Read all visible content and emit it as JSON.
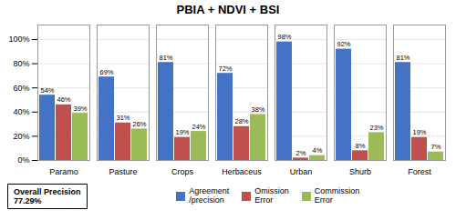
{
  "chart_data": {
    "type": "bar",
    "title": "PBIA + NDVI + BSI",
    "categories": [
      "Paramo",
      "Pasture",
      "Crops",
      "Herbaceus",
      "Urban",
      "Shurb",
      "Forest"
    ],
    "series": [
      {
        "name": "Agreement\n/precision",
        "color": "#4472C4",
        "values": [
          54,
          69,
          81,
          72,
          98,
          92,
          81
        ],
        "value_labels": [
          "54%",
          "69%",
          "81%",
          "72%",
          "98%",
          "92%",
          "81%"
        ]
      },
      {
        "name": "Omission\nError",
        "color": "#C0504D",
        "values": [
          46,
          31,
          19,
          28,
          2,
          8,
          19
        ],
        "value_labels": [
          "46%",
          "31%",
          "19%",
          "28%",
          "2%",
          "8%",
          "19%"
        ]
      },
      {
        "name": "Commission\nError",
        "color": "#9BBB59",
        "values": [
          39,
          26,
          24,
          38,
          4,
          23,
          7
        ],
        "value_labels": [
          "39%",
          "26%",
          "24%",
          "38%",
          "4%",
          "23%",
          "7%"
        ]
      }
    ],
    "ylim": [
      0,
      112
    ],
    "yticks": [
      {
        "value": 0,
        "label": "0%"
      },
      {
        "value": 20,
        "label": "20%"
      },
      {
        "value": 40,
        "label": "40%"
      },
      {
        "value": 60,
        "label": "60%"
      },
      {
        "value": 80,
        "label": "80%"
      },
      {
        "value": 100,
        "label": "100%"
      }
    ],
    "grid": true,
    "data_labels": true,
    "legend": "bottom",
    "annotations": [
      "Overall Precision\n77.29%"
    ]
  }
}
